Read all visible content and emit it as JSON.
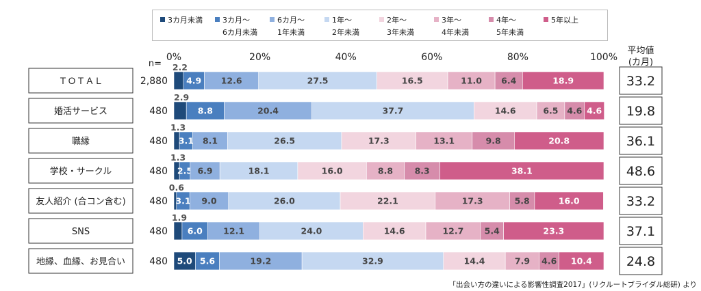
{
  "chart_data": {
    "type": "bar",
    "orientation": "horizontal",
    "stacked": true,
    "percent": true,
    "n_label": "n=",
    "avg_header": [
      "平均値",
      "(カ月)"
    ],
    "xlim": [
      0,
      100
    ],
    "x_ticks": [
      "0%",
      "20%",
      "40%",
      "60%",
      "80%",
      "100%"
    ],
    "x_tick_values": [
      0,
      20,
      40,
      60,
      80,
      100
    ],
    "source": "「出会い方の違いによる影響性調査2017」(リクルートブライダル総研) より",
    "series": [
      {
        "name": [
          "3カ月未満"
        ],
        "color": "#1e4a7a"
      },
      {
        "name": [
          "3カ月～",
          "6カ月未満"
        ],
        "color": "#4a7fbf"
      },
      {
        "name": [
          "6カ月～",
          "1年未満"
        ],
        "color": "#8fb0df"
      },
      {
        "name": [
          "1年～",
          "2年未満"
        ],
        "color": "#c5d8f1"
      },
      {
        "name": [
          "2年～",
          "3年未満"
        ],
        "color": "#f2d5df"
      },
      {
        "name": [
          "3年～",
          "4年未満"
        ],
        "color": "#e6b2c6"
      },
      {
        "name": [
          "4年～",
          "5年未満"
        ],
        "color": "#d68cab"
      },
      {
        "name": [
          "5年以上"
        ],
        "color": "#cf5d8a"
      }
    ],
    "rows": [
      {
        "category": "ＴＯＴＡＬ",
        "n": "2,880",
        "avg": "33.2",
        "values": [
          2.2,
          4.9,
          12.6,
          27.5,
          16.5,
          11.0,
          6.4,
          18.9
        ]
      },
      {
        "category": "婚活サービス",
        "n": "480",
        "avg": "19.8",
        "values": [
          2.9,
          8.8,
          20.4,
          37.7,
          14.6,
          6.5,
          4.6,
          4.6
        ]
      },
      {
        "category": "職縁",
        "n": "480",
        "avg": "36.1",
        "values": [
          1.3,
          3.1,
          8.1,
          26.5,
          17.3,
          13.1,
          9.8,
          20.8
        ]
      },
      {
        "category": "学校・サークル",
        "n": "480",
        "avg": "48.6",
        "values": [
          1.3,
          2.5,
          6.9,
          18.1,
          16.0,
          8.8,
          8.3,
          38.1
        ]
      },
      {
        "category": "友人紹介 (合コン含む)",
        "n": "480",
        "avg": "33.2",
        "values": [
          0.6,
          3.1,
          9.0,
          26.0,
          22.1,
          17.3,
          5.8,
          16.0
        ]
      },
      {
        "category": "SNS",
        "n": "480",
        "avg": "37.1",
        "values": [
          1.9,
          6.0,
          12.1,
          24.0,
          14.6,
          12.7,
          5.4,
          23.3
        ]
      },
      {
        "category": "地縁、血縁、お見合い",
        "n": "480",
        "avg": "24.8",
        "values": [
          5.0,
          5.6,
          19.2,
          32.9,
          14.4,
          7.9,
          4.6,
          10.4
        ]
      }
    ]
  }
}
